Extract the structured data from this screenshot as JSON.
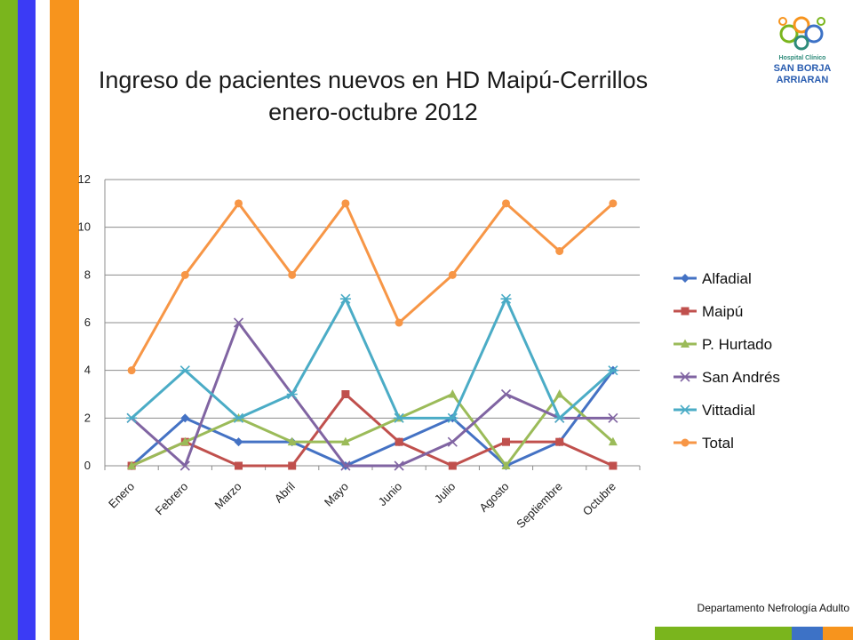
{
  "slide": {
    "title_line1": "Ingreso de pacientes nuevos en HD Maipú-Cerrillos",
    "title_line2": "enero-octubre 2012",
    "footer": "Departamento Nefrología Adulto"
  },
  "logo": {
    "line1": "Hospital Clínico",
    "line2": "SAN BORJA",
    "line3": "ARRIARAN"
  },
  "colors": {
    "stripe_green": "#7ab51d",
    "stripe_blue": "#3b3bf5",
    "stripe_orange": "#f7941d"
  },
  "chart_data": {
    "type": "line",
    "categories": [
      "Enero",
      "Febrero",
      "Marzo",
      "Abril",
      "Mayo",
      "Junio",
      "Julio",
      "Agosto",
      "Septiembre",
      "Octubre"
    ],
    "ylim": [
      0,
      12
    ],
    "yticks": [
      0,
      2,
      4,
      6,
      8,
      10,
      12
    ],
    "grid": true,
    "legend": "right",
    "series": [
      {
        "name": "Alfadial",
        "values": [
          0,
          2,
          1,
          1,
          0,
          1,
          2,
          0,
          1,
          4
        ],
        "color": "#4472c4",
        "marker": "diamond"
      },
      {
        "name": "Maipú",
        "values": [
          0,
          1,
          0,
          0,
          3,
          1,
          0,
          1,
          1,
          0
        ],
        "color": "#c0504d",
        "marker": "square"
      },
      {
        "name": "P. Hurtado",
        "values": [
          0,
          1,
          2,
          1,
          1,
          2,
          3,
          0,
          3,
          1
        ],
        "color": "#9bbb59",
        "marker": "triangle"
      },
      {
        "name": "San Andrés",
        "values": [
          2,
          0,
          6,
          3,
          0,
          0,
          1,
          3,
          2,
          2
        ],
        "color": "#8064a2",
        "marker": "x"
      },
      {
        "name": "Vittadial",
        "values": [
          2,
          4,
          2,
          3,
          7,
          2,
          2,
          7,
          2,
          4
        ],
        "color": "#4bacc6",
        "marker": "star"
      },
      {
        "name": "Total",
        "values": [
          4,
          8,
          11,
          8,
          11,
          6,
          8,
          11,
          9,
          11
        ],
        "color": "#f79646",
        "marker": "circle"
      }
    ]
  }
}
